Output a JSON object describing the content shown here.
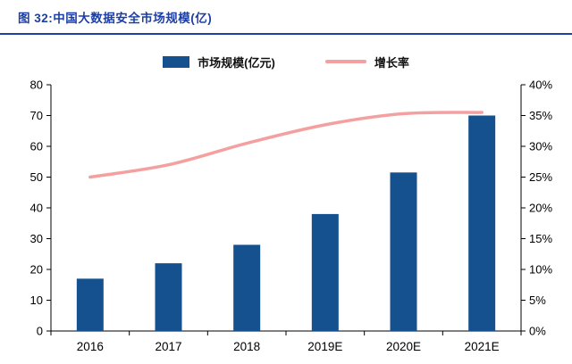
{
  "theme": {
    "accent": "#1d3fa5",
    "axis_color": "#000000",
    "text_color": "#000000",
    "background": "#ffffff"
  },
  "header": {
    "title": "图 32:中国大数据安全市场规模(亿)"
  },
  "chart_data": {
    "type": "bar+line",
    "title": "中国大数据安全市场规模(亿)",
    "categories": [
      "2016",
      "2017",
      "2018",
      "2019E",
      "2020E",
      "2021E"
    ],
    "series": [
      {
        "name": "市场规模(亿元)",
        "type": "bar",
        "axis": "left",
        "color": "#15518e",
        "values": [
          17,
          22,
          28,
          38,
          51.5,
          70
        ]
      },
      {
        "name": "增长率",
        "type": "line",
        "axis": "right",
        "color": "#f5a0a0",
        "values": [
          25,
          27,
          30.5,
          33.5,
          35.3,
          35.5
        ]
      }
    ],
    "left_axis": {
      "min": 0,
      "max": 80,
      "step": 10,
      "labels": [
        "0",
        "10",
        "20",
        "30",
        "40",
        "50",
        "60",
        "70",
        "80"
      ]
    },
    "right_axis": {
      "min": 0,
      "max": 40,
      "step": 5,
      "labels": [
        "0%",
        "5%",
        "10%",
        "15%",
        "20%",
        "25%",
        "30%",
        "35%",
        "40%"
      ]
    },
    "grid": false,
    "legend_position": "top"
  }
}
